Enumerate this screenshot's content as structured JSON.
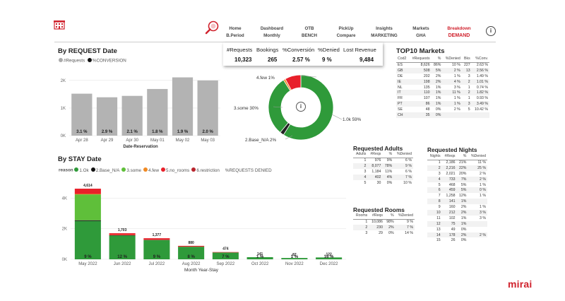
{
  "nav": [
    {
      "line1": "Home",
      "line2": "B.Period"
    },
    {
      "line1": "Dashboard",
      "line2": "Monthly"
    },
    {
      "line1": "OTB",
      "line2": "BENCH"
    },
    {
      "line1": "PickUp",
      "line2": "Compare"
    },
    {
      "line1": "Insights",
      "line2": "MARKETING"
    },
    {
      "line1": "Markets",
      "line2": "GHA"
    },
    {
      "line1": "Breakdown",
      "line2": "DEMAND"
    }
  ],
  "colors": {
    "accent": "#d0222d",
    "green": "#2f9a3a",
    "gray": "#b3b3b3"
  },
  "request": {
    "title": "By REQUEST Date",
    "legend_requests": "#Requests",
    "legend_conversion": "%CONVERSION",
    "xlabel": "Date-Reservation"
  },
  "kpi": {
    "headers": [
      "#Requests",
      "Bookings",
      "%Conversión",
      "%Denied",
      "Lost Revenue"
    ],
    "values": [
      "10,323",
      "265",
      "2.57 %",
      "9 %",
      "9,484"
    ]
  },
  "donut": {
    "center_icon": "info-icon",
    "labels": [
      "1.0k 59%",
      "3.some 30%",
      "4.few 1%",
      "2.Base_N/A 2%"
    ]
  },
  "top10": {
    "title": "TOP10 Markets",
    "headers": [
      "Cod2",
      "#Requests",
      "%",
      "%Denied",
      "Bks",
      "%Conv."
    ],
    "rows": [
      [
        "ES",
        "8,626",
        "86%",
        "10 %",
        "227",
        "2.63 %"
      ],
      [
        "GB",
        "508",
        "5%",
        "2 %",
        "13",
        "2.56 %"
      ],
      [
        "DE",
        "202",
        "2%",
        "1 %",
        "3",
        "1.49 %"
      ],
      [
        "IE",
        "198",
        "2%",
        "4 %",
        "2",
        "1.01 %"
      ],
      [
        "NL",
        "135",
        "1%",
        "3 %",
        "1",
        "0.74 %"
      ],
      [
        "IT",
        "110",
        "1%",
        "11 %",
        "2",
        "1.82 %"
      ],
      [
        "FR",
        "107",
        "1%",
        "1 %",
        "1",
        "0.93 %"
      ],
      [
        "PT",
        "86",
        "1%",
        "1 %",
        "3",
        "3.49 %"
      ],
      [
        "SE",
        "48",
        "0%",
        "2 %",
        "5",
        "10.42 %"
      ],
      [
        "CH",
        "35",
        "0%",
        "",
        "",
        ""
      ]
    ]
  },
  "stay": {
    "title": "By STAY Date",
    "legend_label": "reason",
    "legend_items": [
      "1.Ok",
      "2.Base_N/A",
      "3.some",
      "4.few",
      "5.no_rooms",
      "6.restriction",
      "%REQUESTS DENIED"
    ],
    "xlabel": "Month Year-Stay"
  },
  "adults": {
    "title": "Requested Adults",
    "headers": [
      "Adults",
      "#Reqs",
      "%",
      "%Denied"
    ],
    "rows": [
      [
        "1",
        "976",
        "9%",
        "6 %"
      ],
      [
        "2",
        "8,077",
        "78%",
        "9 %"
      ],
      [
        "3",
        "1,184",
        "11%",
        "6 %"
      ],
      [
        "4",
        "402",
        "4%",
        "7 %"
      ],
      [
        "5",
        "30",
        "0%",
        "10 %"
      ]
    ]
  },
  "rooms": {
    "title": "Requested Rooms",
    "headers": [
      "Rooms",
      "#Reqs",
      "%",
      "%Denied"
    ],
    "rows": [
      [
        "1",
        "10,086",
        "98%",
        "9 %"
      ],
      [
        "2",
        "230",
        "2%",
        "7 %"
      ],
      [
        "3",
        "29",
        "0%",
        "14 %"
      ]
    ]
  },
  "nights": {
    "title": "Requested Nights",
    "headers": [
      "Nights",
      "#Reqs",
      "%",
      "%Denied"
    ],
    "rows": [
      [
        "1",
        "2,186",
        "21%",
        "11 %"
      ],
      [
        "2",
        "2,216",
        "22%",
        "25 %"
      ],
      [
        "3",
        "2,021",
        "20%",
        "2 %"
      ],
      [
        "4",
        "733",
        "7%",
        "2 %"
      ],
      [
        "5",
        "468",
        "5%",
        "1 %"
      ],
      [
        "6",
        "459",
        "5%",
        "0 %"
      ],
      [
        "7",
        "1,258",
        "12%",
        "1 %"
      ],
      [
        "8",
        "141",
        "1%",
        ""
      ],
      [
        "9",
        "160",
        "2%",
        "1 %"
      ],
      [
        "10",
        "212",
        "2%",
        "3 %"
      ],
      [
        "11",
        "102",
        "1%",
        "3 %"
      ],
      [
        "12",
        "75",
        "1%",
        ""
      ],
      [
        "13",
        "49",
        "0%",
        ""
      ],
      [
        "14",
        "178",
        "2%",
        "2 %"
      ],
      [
        "15",
        "26",
        "0%",
        ""
      ]
    ]
  },
  "brand": "mirai",
  "chart_data": [
    {
      "type": "bar",
      "title": "By REQUEST Date",
      "categories": [
        "Apr 28",
        "Apr 29",
        "Apr 30",
        "May 01",
        "May 02",
        "May 03"
      ],
      "series": [
        {
          "name": "#Requests",
          "values": [
            1520,
            1390,
            1440,
            1690,
            2110,
            2000
          ]
        },
        {
          "name": "%CONVERSION",
          "values": [
            3.1,
            2.9,
            2.1,
            1.8,
            1.9,
            2.0
          ]
        }
      ],
      "data_labels": [
        "3.1 %",
        "2.9 %",
        "2.1 %",
        "1.8 %",
        "1.9 %",
        "2.0 %"
      ],
      "yticks": [
        "0K",
        "1K",
        "2K"
      ],
      "ylim": [
        0,
        2200
      ],
      "xlabel": "Date-Reservation"
    },
    {
      "type": "pie",
      "slices": [
        {
          "label": "1.0k",
          "value": 59,
          "color": "#2f9a3a"
        },
        {
          "label": "2.Base_N/A",
          "value": 2,
          "color": "#222222"
        },
        {
          "label": "3.some",
          "value": 30,
          "color": "#2f9a3a"
        },
        {
          "label": "4.few",
          "value": 1,
          "color": "#f08a24"
        },
        {
          "label": "5.no_rooms",
          "value": 8,
          "color": "#e8202a"
        }
      ]
    },
    {
      "type": "bar",
      "title": "By STAY Date",
      "stacked": true,
      "categories": [
        "May 2022",
        "Jun 2022",
        "Jul 2022",
        "Aug 2022",
        "Sep 2022",
        "Oct 2022",
        "Nov 2022",
        "Dec 2022"
      ],
      "series": [
        {
          "name": "1.Ok",
          "color": "#2f9a3a",
          "values": [
            2500,
            1550,
            1250,
            820,
            440,
            141,
            87,
            122
          ]
        },
        {
          "name": "2.Base_N/A",
          "color": "#111111",
          "values": [
            50,
            20,
            15,
            5,
            4,
            0,
            0,
            0
          ]
        },
        {
          "name": "3.some",
          "color": "#5fbf3a",
          "values": [
            1690,
            0,
            0,
            0,
            0,
            0,
            0,
            0
          ]
        },
        {
          "name": "4.few",
          "color": "#f08a24",
          "values": [
            30,
            15,
            12,
            5,
            3,
            0,
            0,
            0
          ]
        },
        {
          "name": "5.no_rooms",
          "color": "#e8202a",
          "values": [
            344,
            118,
            100,
            50,
            27,
            0,
            0,
            0
          ]
        }
      ],
      "totals": [
        4614,
        1703,
        1377,
        880,
        474,
        141,
        87,
        122
      ],
      "total_labels": [
        "4,614",
        "1,703",
        "1,377",
        "880",
        "474",
        "141",
        "87",
        "122"
      ],
      "pct_labels": [
        "9 %",
        "12 %",
        "9 %",
        "8 %",
        "7 %",
        "1 %",
        "1 %",
        "16 %"
      ],
      "yticks": [
        "0K",
        "2K",
        "4K"
      ],
      "ylim": [
        0,
        4800
      ],
      "xlabel": "Month Year-Stay"
    }
  ]
}
